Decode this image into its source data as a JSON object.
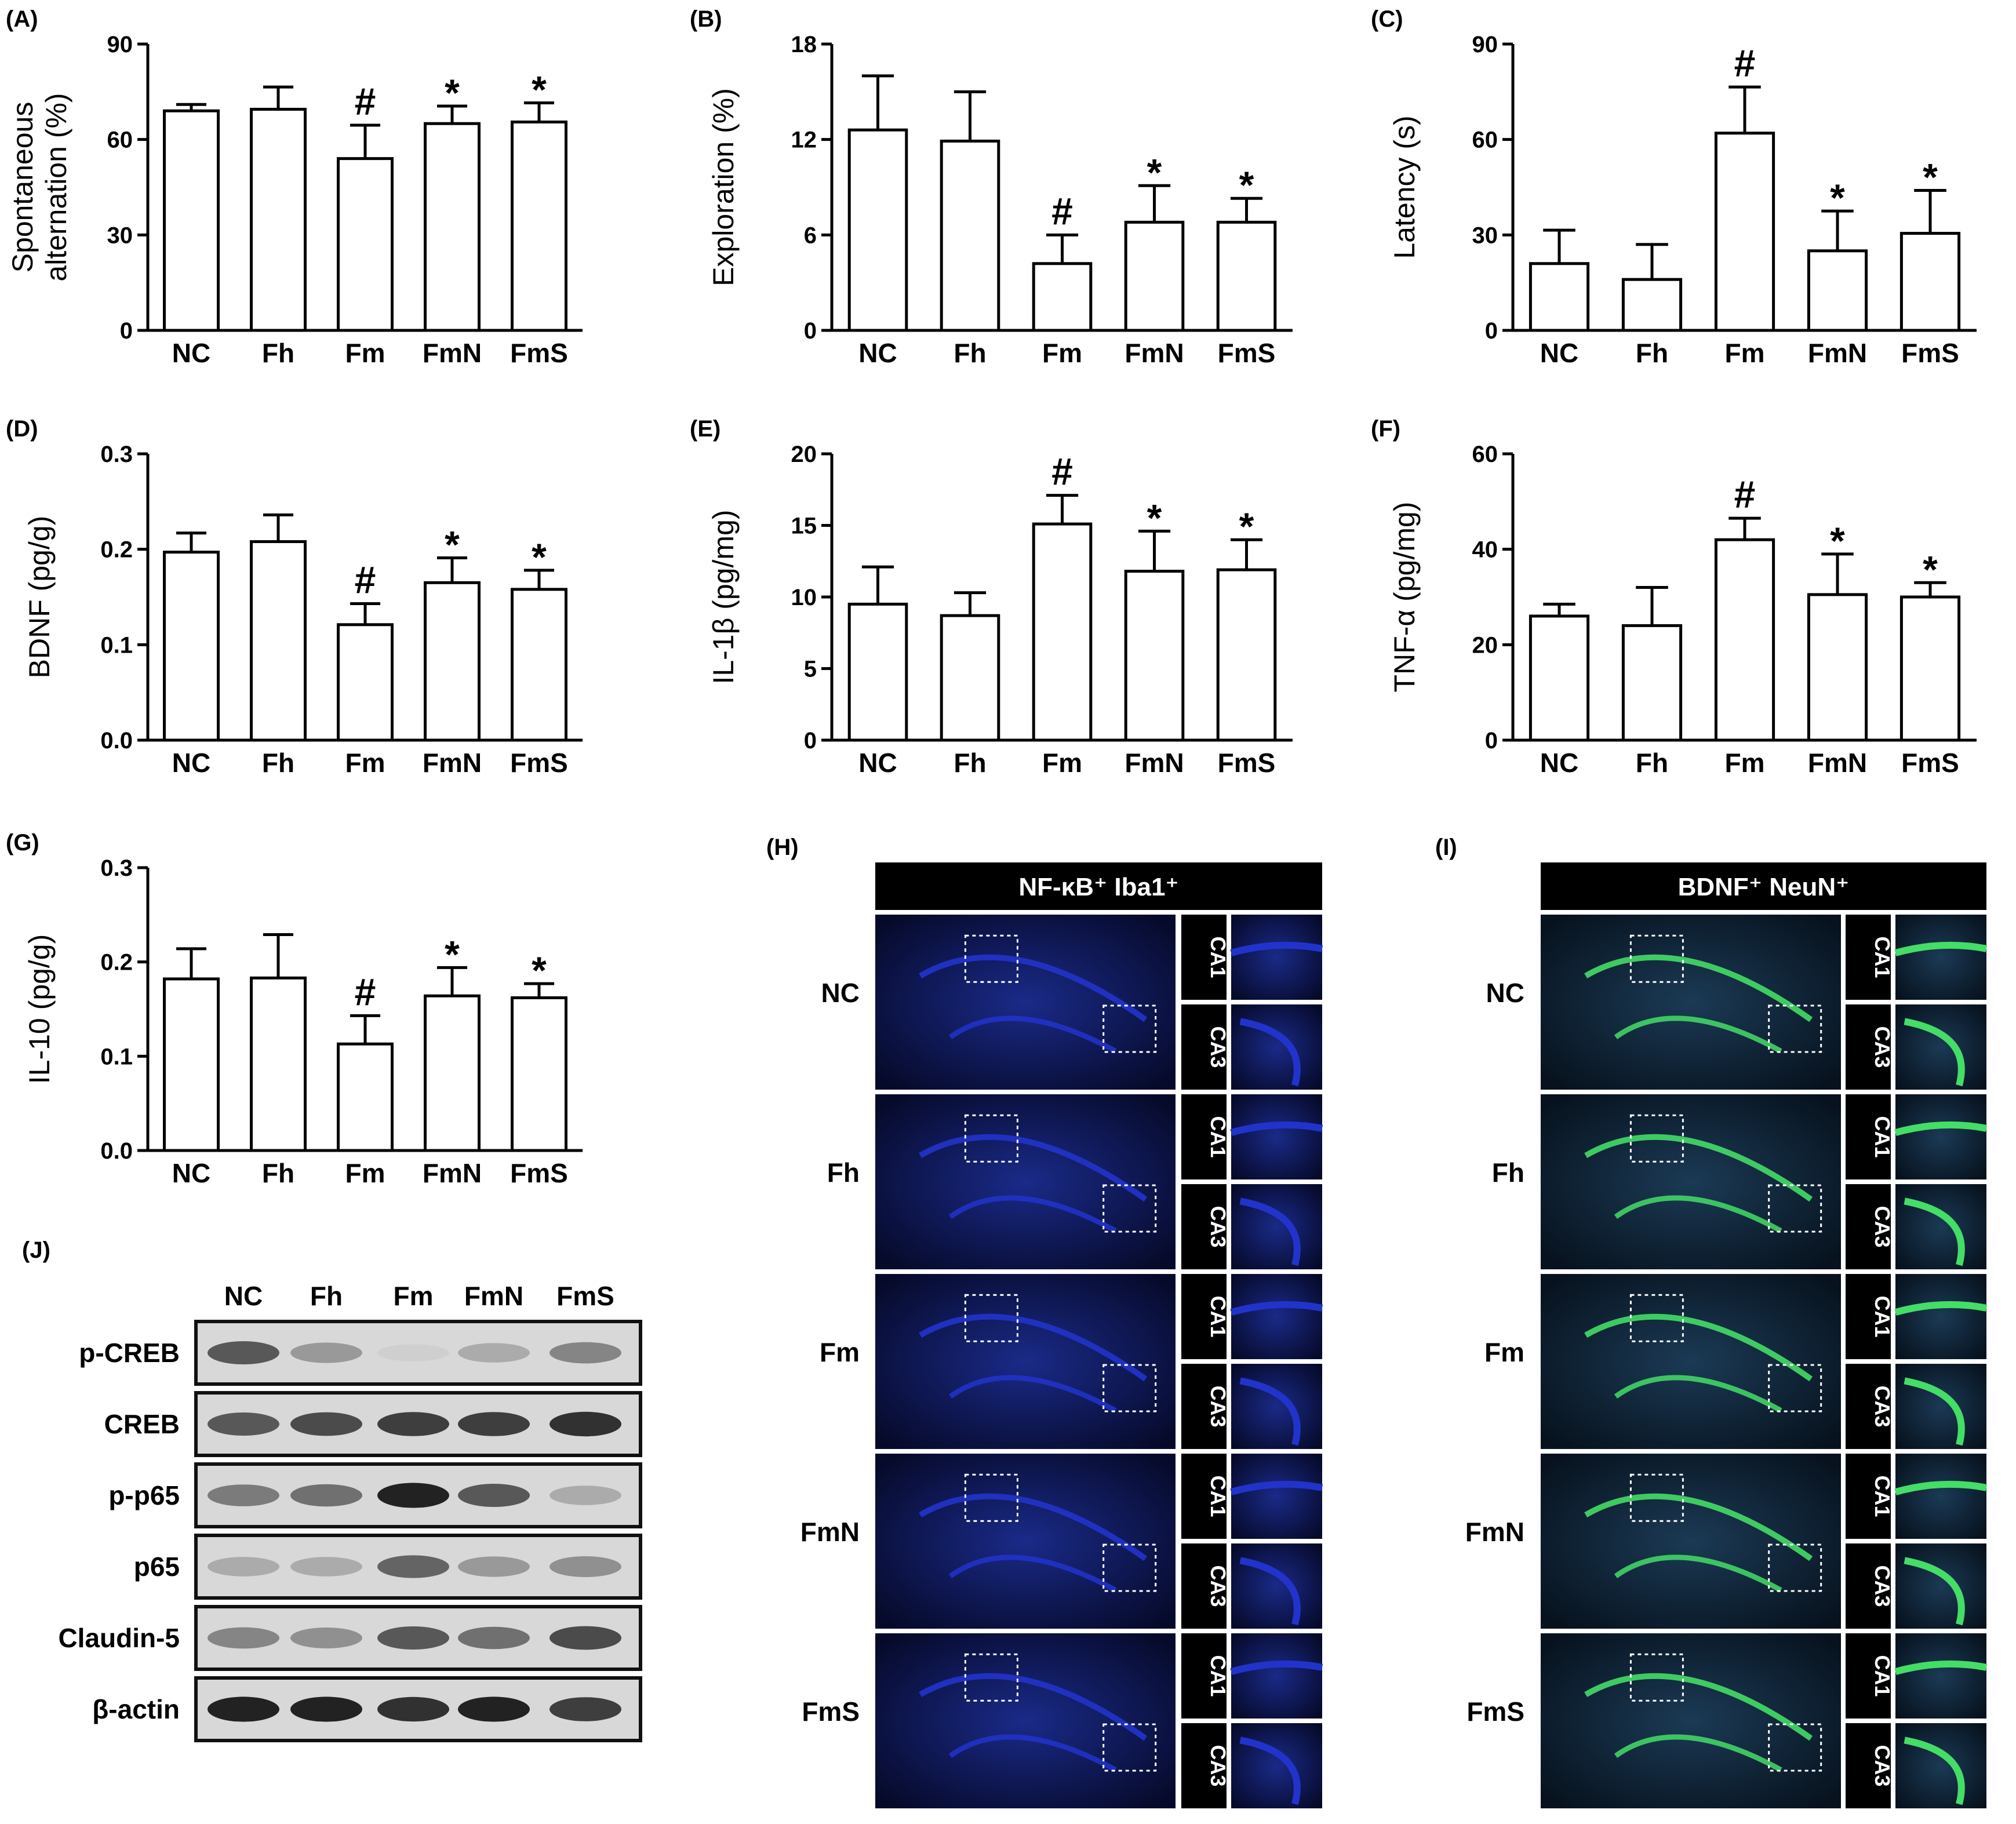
{
  "groups": [
    "NC",
    "Fh",
    "Fm",
    "FmN",
    "FmS"
  ],
  "chart_data": [
    {
      "panel": "(A)",
      "type": "bar",
      "ylabel": "Spontaneous\nalternation (%)",
      "ylim": [
        0,
        90
      ],
      "yticks": [
        0,
        30,
        60,
        90
      ],
      "categories": [
        "NC",
        "Fh",
        "Fm",
        "FmN",
        "FmS"
      ],
      "values": [
        69,
        69.5,
        54,
        65,
        65.5
      ],
      "errors": [
        2,
        7,
        10.5,
        5.5,
        6
      ],
      "marks": [
        "",
        "",
        "#",
        "*",
        "*"
      ]
    },
    {
      "panel": "(B)",
      "type": "bar",
      "ylabel": "Exploration (%)",
      "ylim": [
        0,
        18
      ],
      "yticks": [
        0,
        6,
        12,
        18
      ],
      "categories": [
        "NC",
        "Fh",
        "Fm",
        "FmN",
        "FmS"
      ],
      "values": [
        12.6,
        11.9,
        4.2,
        6.8,
        6.8
      ],
      "errors": [
        3.4,
        3.1,
        1.8,
        2.3,
        1.5
      ],
      "marks": [
        "",
        "",
        "#",
        "*",
        "*"
      ]
    },
    {
      "panel": "(C)",
      "type": "bar",
      "ylabel": "Latency (s)",
      "ylim": [
        0,
        90
      ],
      "yticks": [
        0,
        30,
        60,
        90
      ],
      "categories": [
        "NC",
        "Fh",
        "Fm",
        "FmN",
        "FmS"
      ],
      "values": [
        21,
        16,
        62,
        25,
        30.5
      ],
      "errors": [
        10.5,
        11,
        14.5,
        12.5,
        13.5
      ],
      "marks": [
        "",
        "",
        "#",
        "*",
        "*"
      ]
    },
    {
      "panel": "(D)",
      "type": "bar",
      "ylabel": "BDNF (pg/g)",
      "ylim": [
        0,
        0.3
      ],
      "yticks": [
        "0.0",
        "0.1",
        "0.2",
        "0.3"
      ],
      "categories": [
        "NC",
        "Fh",
        "Fm",
        "FmN",
        "FmS"
      ],
      "values": [
        0.197,
        0.208,
        0.121,
        0.165,
        0.158
      ],
      "errors": [
        0.02,
        0.028,
        0.022,
        0.026,
        0.02
      ],
      "marks": [
        "",
        "",
        "#",
        "*",
        "*"
      ]
    },
    {
      "panel": "(E)",
      "type": "bar",
      "ylabel": "IL-1β (pg/mg)",
      "ylim": [
        0,
        20
      ],
      "yticks": [
        0,
        5,
        10,
        15,
        20
      ],
      "categories": [
        "NC",
        "Fh",
        "Fm",
        "FmN",
        "FmS"
      ],
      "values": [
        9.5,
        8.7,
        15.1,
        11.8,
        11.9
      ],
      "errors": [
        2.6,
        1.6,
        2.0,
        2.8,
        2.1
      ],
      "marks": [
        "",
        "",
        "#",
        "*",
        "*"
      ]
    },
    {
      "panel": "(F)",
      "type": "bar",
      "ylabel": "TNF-α (pg/mg)",
      "ylim": [
        0,
        60
      ],
      "yticks": [
        0,
        20,
        40,
        60
      ],
      "categories": [
        "NC",
        "Fh",
        "Fm",
        "FmN",
        "FmS"
      ],
      "values": [
        26,
        24,
        42,
        30.5,
        30
      ],
      "errors": [
        2.5,
        8,
        4.5,
        8.5,
        3
      ],
      "marks": [
        "",
        "",
        "#",
        "*",
        "*"
      ]
    },
    {
      "panel": "(G)",
      "type": "bar",
      "ylabel": "IL-10 (pg/g)",
      "ylim": [
        0,
        0.3
      ],
      "yticks": [
        "0.0",
        "0.1",
        "0.2",
        "0.3"
      ],
      "categories": [
        "NC",
        "Fh",
        "Fm",
        "FmN",
        "FmS"
      ],
      "values": [
        0.182,
        0.183,
        0.113,
        0.164,
        0.162
      ],
      "errors": [
        0.032,
        0.046,
        0.03,
        0.03,
        0.015
      ],
      "marks": [
        "",
        "",
        "#",
        "*",
        "*"
      ]
    }
  ],
  "panel_j": {
    "label": "(J)",
    "lanes": [
      "NC",
      "Fh",
      "Fm",
      "FmN",
      "FmS"
    ],
    "rows": [
      {
        "name": "p-CREB",
        "intensity": [
          0.75,
          0.45,
          0.1,
          0.35,
          0.55
        ]
      },
      {
        "name": "CREB",
        "intensity": [
          0.75,
          0.8,
          0.85,
          0.85,
          0.9
        ]
      },
      {
        "name": "p-p65",
        "intensity": [
          0.6,
          0.65,
          0.95,
          0.75,
          0.35
        ]
      },
      {
        "name": "p65",
        "intensity": [
          0.35,
          0.35,
          0.7,
          0.45,
          0.5
        ]
      },
      {
        "name": "Claudin-5",
        "intensity": [
          0.55,
          0.5,
          0.75,
          0.65,
          0.8
        ]
      },
      {
        "name": "β-actin",
        "intensity": [
          0.95,
          0.95,
          0.9,
          0.95,
          0.85
        ]
      }
    ]
  },
  "panel_h": {
    "label": "(H)",
    "title": "NF-κB⁺ Iba1⁺",
    "regions": [
      "CA1",
      "CA3"
    ],
    "colors": {
      "main": "#2233cc",
      "marker": "#cc2244"
    }
  },
  "panel_i": {
    "label": "(I)",
    "title": "BDNF⁺ NeuN⁺",
    "regions": [
      "CA1",
      "CA3"
    ],
    "colors": {
      "main": "#3366aa",
      "marker": "#44dd66"
    }
  }
}
